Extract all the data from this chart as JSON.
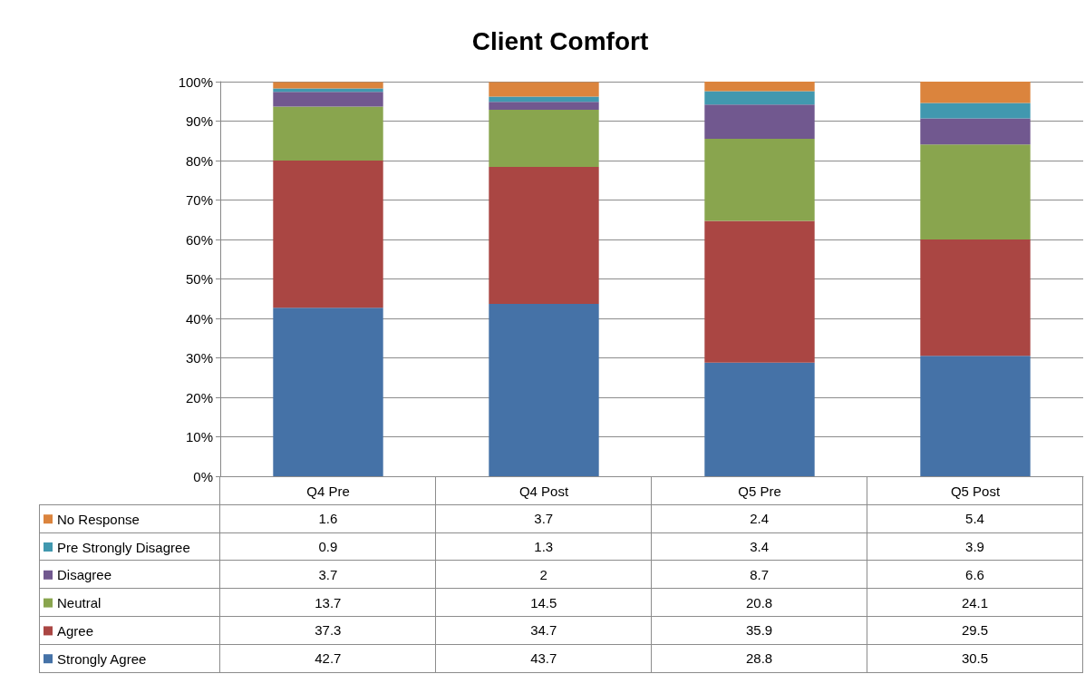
{
  "chart_data": {
    "type": "bar",
    "title": "Client Comfort",
    "stacked": true,
    "categories": [
      "Q4 Pre",
      "Q4 Post",
      "Q5 Pre",
      "Q5 Post"
    ],
    "series": [
      {
        "name": "Strongly Agree",
        "color": "#4572a7",
        "values": [
          42.7,
          43.7,
          28.8,
          30.5
        ]
      },
      {
        "name": "Agree",
        "color": "#aa4643",
        "values": [
          37.3,
          34.7,
          35.9,
          29.5
        ]
      },
      {
        "name": "Neutral",
        "color": "#89a54e",
        "values": [
          13.7,
          14.5,
          20.8,
          24.1
        ]
      },
      {
        "name": "Disagree",
        "color": "#71588f",
        "values": [
          3.7,
          2,
          8.7,
          6.6
        ]
      },
      {
        "name": "Pre Strongly Disagree",
        "color": "#4198af",
        "values": [
          0.9,
          1.3,
          3.4,
          3.9
        ]
      },
      {
        "name": "No Response",
        "color": "#db843d",
        "values": [
          1.6,
          3.7,
          2.4,
          5.4
        ]
      }
    ],
    "ylim": [
      0,
      100
    ],
    "yticks": [
      {
        "value": 0,
        "label": "0%"
      },
      {
        "value": 10,
        "label": "10%"
      },
      {
        "value": 20,
        "label": "20%"
      },
      {
        "value": 30,
        "label": "30%"
      },
      {
        "value": 40,
        "label": "40%"
      },
      {
        "value": 50,
        "label": "50%"
      },
      {
        "value": 60,
        "label": "60%"
      },
      {
        "value": 70,
        "label": "70%"
      },
      {
        "value": 80,
        "label": "80%"
      },
      {
        "value": 90,
        "label": "90%"
      },
      {
        "value": 100,
        "label": "100%"
      }
    ],
    "grid": "y",
    "legend": "bottom",
    "data_labels": true
  }
}
